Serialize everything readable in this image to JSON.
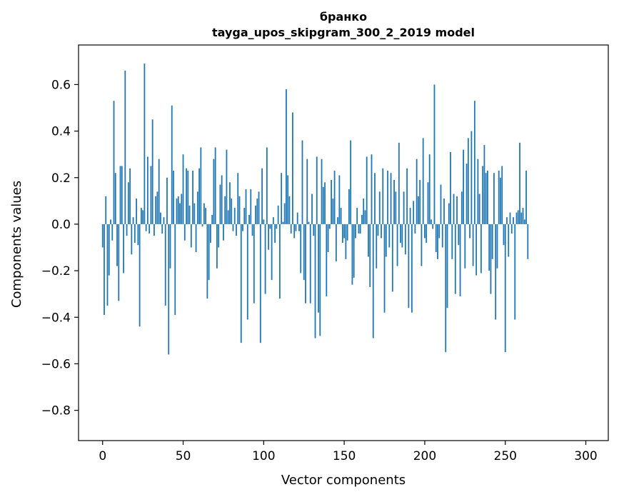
{
  "chart_data": {
    "type": "bar",
    "title_line1": "бранко",
    "title_line2": "tayga_upos_skipgram_300_2_2019 model",
    "xlabel": "Vector components",
    "ylabel": "Components values",
    "xlim": [
      -14.95,
      313.95
    ],
    "ylim": [
      -0.93,
      0.77
    ],
    "x_ticks": [
      0,
      50,
      100,
      150,
      200,
      250,
      300
    ],
    "y_ticks": [
      0.6,
      0.4,
      0.2,
      0.0,
      -0.2,
      -0.4,
      -0.6,
      -0.8
    ],
    "x_tick_labels": [
      "0",
      "50",
      "100",
      "150",
      "200",
      "250",
      "300"
    ],
    "y_tick_labels": [
      "0.6",
      "0.4",
      "0.2",
      "0.0",
      "−0.2",
      "−0.4",
      "−0.6",
      "−0.8"
    ],
    "bar_color": "#1f77b4",
    "grid": false,
    "values": [
      -0.1,
      -0.39,
      0.12,
      -0.35,
      -0.22,
      0.02,
      -0.07,
      0.53,
      0.22,
      -0.18,
      -0.33,
      0.25,
      0.25,
      -0.21,
      0.66,
      -0.05,
      0.18,
      0.24,
      -0.13,
      0.03,
      -0.08,
      0.11,
      -0.09,
      -0.44,
      0.07,
      0.06,
      0.69,
      -0.03,
      0.29,
      -0.04,
      0.25,
      0.45,
      -0.05,
      0.12,
      0.14,
      0.28,
      0.05,
      -0.04,
      0.03,
      -0.35,
      0.2,
      -0.56,
      -0.19,
      0.51,
      0.23,
      -0.39,
      0.11,
      0.12,
      0.09,
      0.13,
      0.3,
      -0.07,
      0.24,
      0.23,
      0.08,
      -0.1,
      0.23,
      0.09,
      -0.12,
      0.14,
      0.24,
      0.33,
      -0.01,
      0.09,
      0.07,
      -0.32,
      -0.24,
      -0.08,
      0.04,
      0.28,
      0.33,
      -0.19,
      -0.1,
      0.17,
      0.21,
      -0.07,
      0.12,
      0.32,
      0.06,
      0.18,
      0.11,
      -0.03,
      0.07,
      -0.05,
      0.22,
      0.12,
      -0.51,
      -0.03,
      0.07,
      0.15,
      -0.41,
      0.04,
      0.15,
      -0.05,
      -0.34,
      0.08,
      0.11,
      0.14,
      -0.51,
      0.24,
      0.02,
      -0.3,
      0.33,
      -0.11,
      -0.02,
      -0.24,
      0.03,
      -0.08,
      -0.02,
      0.08,
      -0.32,
      0.22,
      0.01,
      0.09,
      0.58,
      0.21,
      0.12,
      -0.04,
      0.48,
      -0.06,
      -0.03,
      0.05,
      -0.03,
      -0.21,
      0.36,
      -0.24,
      -0.34,
      0.28,
      0.01,
      -0.34,
      0.13,
      -0.05,
      -0.49,
      0.29,
      -0.38,
      -0.48,
      0.28,
      0.16,
      0.18,
      -0.31,
      -0.12,
      -0.02,
      0.19,
      0.11,
      0.23,
      -0.16,
      0.03,
      0.21,
      0.07,
      -0.08,
      -0.06,
      -0.15,
      -0.07,
      0.15,
      0.36,
      -0.26,
      -0.23,
      -0.06,
      0.07,
      -0.04,
      -0.04,
      0.04,
      0.11,
      0.06,
      0.29,
      -0.14,
      -0.27,
      0.3,
      -0.49,
      0.22,
      -0.19,
      -0.05,
      0.14,
      -0.06,
      0.24,
      -0.38,
      -0.14,
      0.23,
      -0.1,
      0.22,
      -0.29,
      0.19,
      0.14,
      -0.18,
      0.35,
      -0.08,
      -0.1,
      0.14,
      -0.13,
      0.24,
      -0.36,
      0.07,
      -0.38,
      0.1,
      -0.04,
      0.28,
      0.12,
      0.19,
      -0.18,
      0.37,
      -0.06,
      -0.08,
      0.18,
      0.3,
      0.02,
      -0.02,
      0.6,
      -0.12,
      -0.15,
      -0.06,
      0.17,
      -0.1,
      0.11,
      -0.55,
      -0.36,
      0.09,
      0.31,
      -0.15,
      0.13,
      -0.3,
      0.12,
      -0.09,
      -0.31,
      0.14,
      0.32,
      -0.19,
      0.26,
      0.37,
      -0.06,
      0.4,
      -0.18,
      0.53,
      -0.22,
      0.28,
      0.13,
      -0.21,
      0.25,
      0.34,
      0.22,
      0.23,
      -0.2,
      -0.3,
      -0.15,
      0.22,
      -0.41,
      -0.19,
      0.23,
      0.2,
      0.25,
      -0.09,
      -0.55,
      0.03,
      -0.14,
      0.05,
      -0.04,
      0.03,
      -0.41,
      0.05,
      0.06,
      0.35,
      0.05,
      0.07,
      0.02,
      0.23,
      -0.15
    ]
  }
}
